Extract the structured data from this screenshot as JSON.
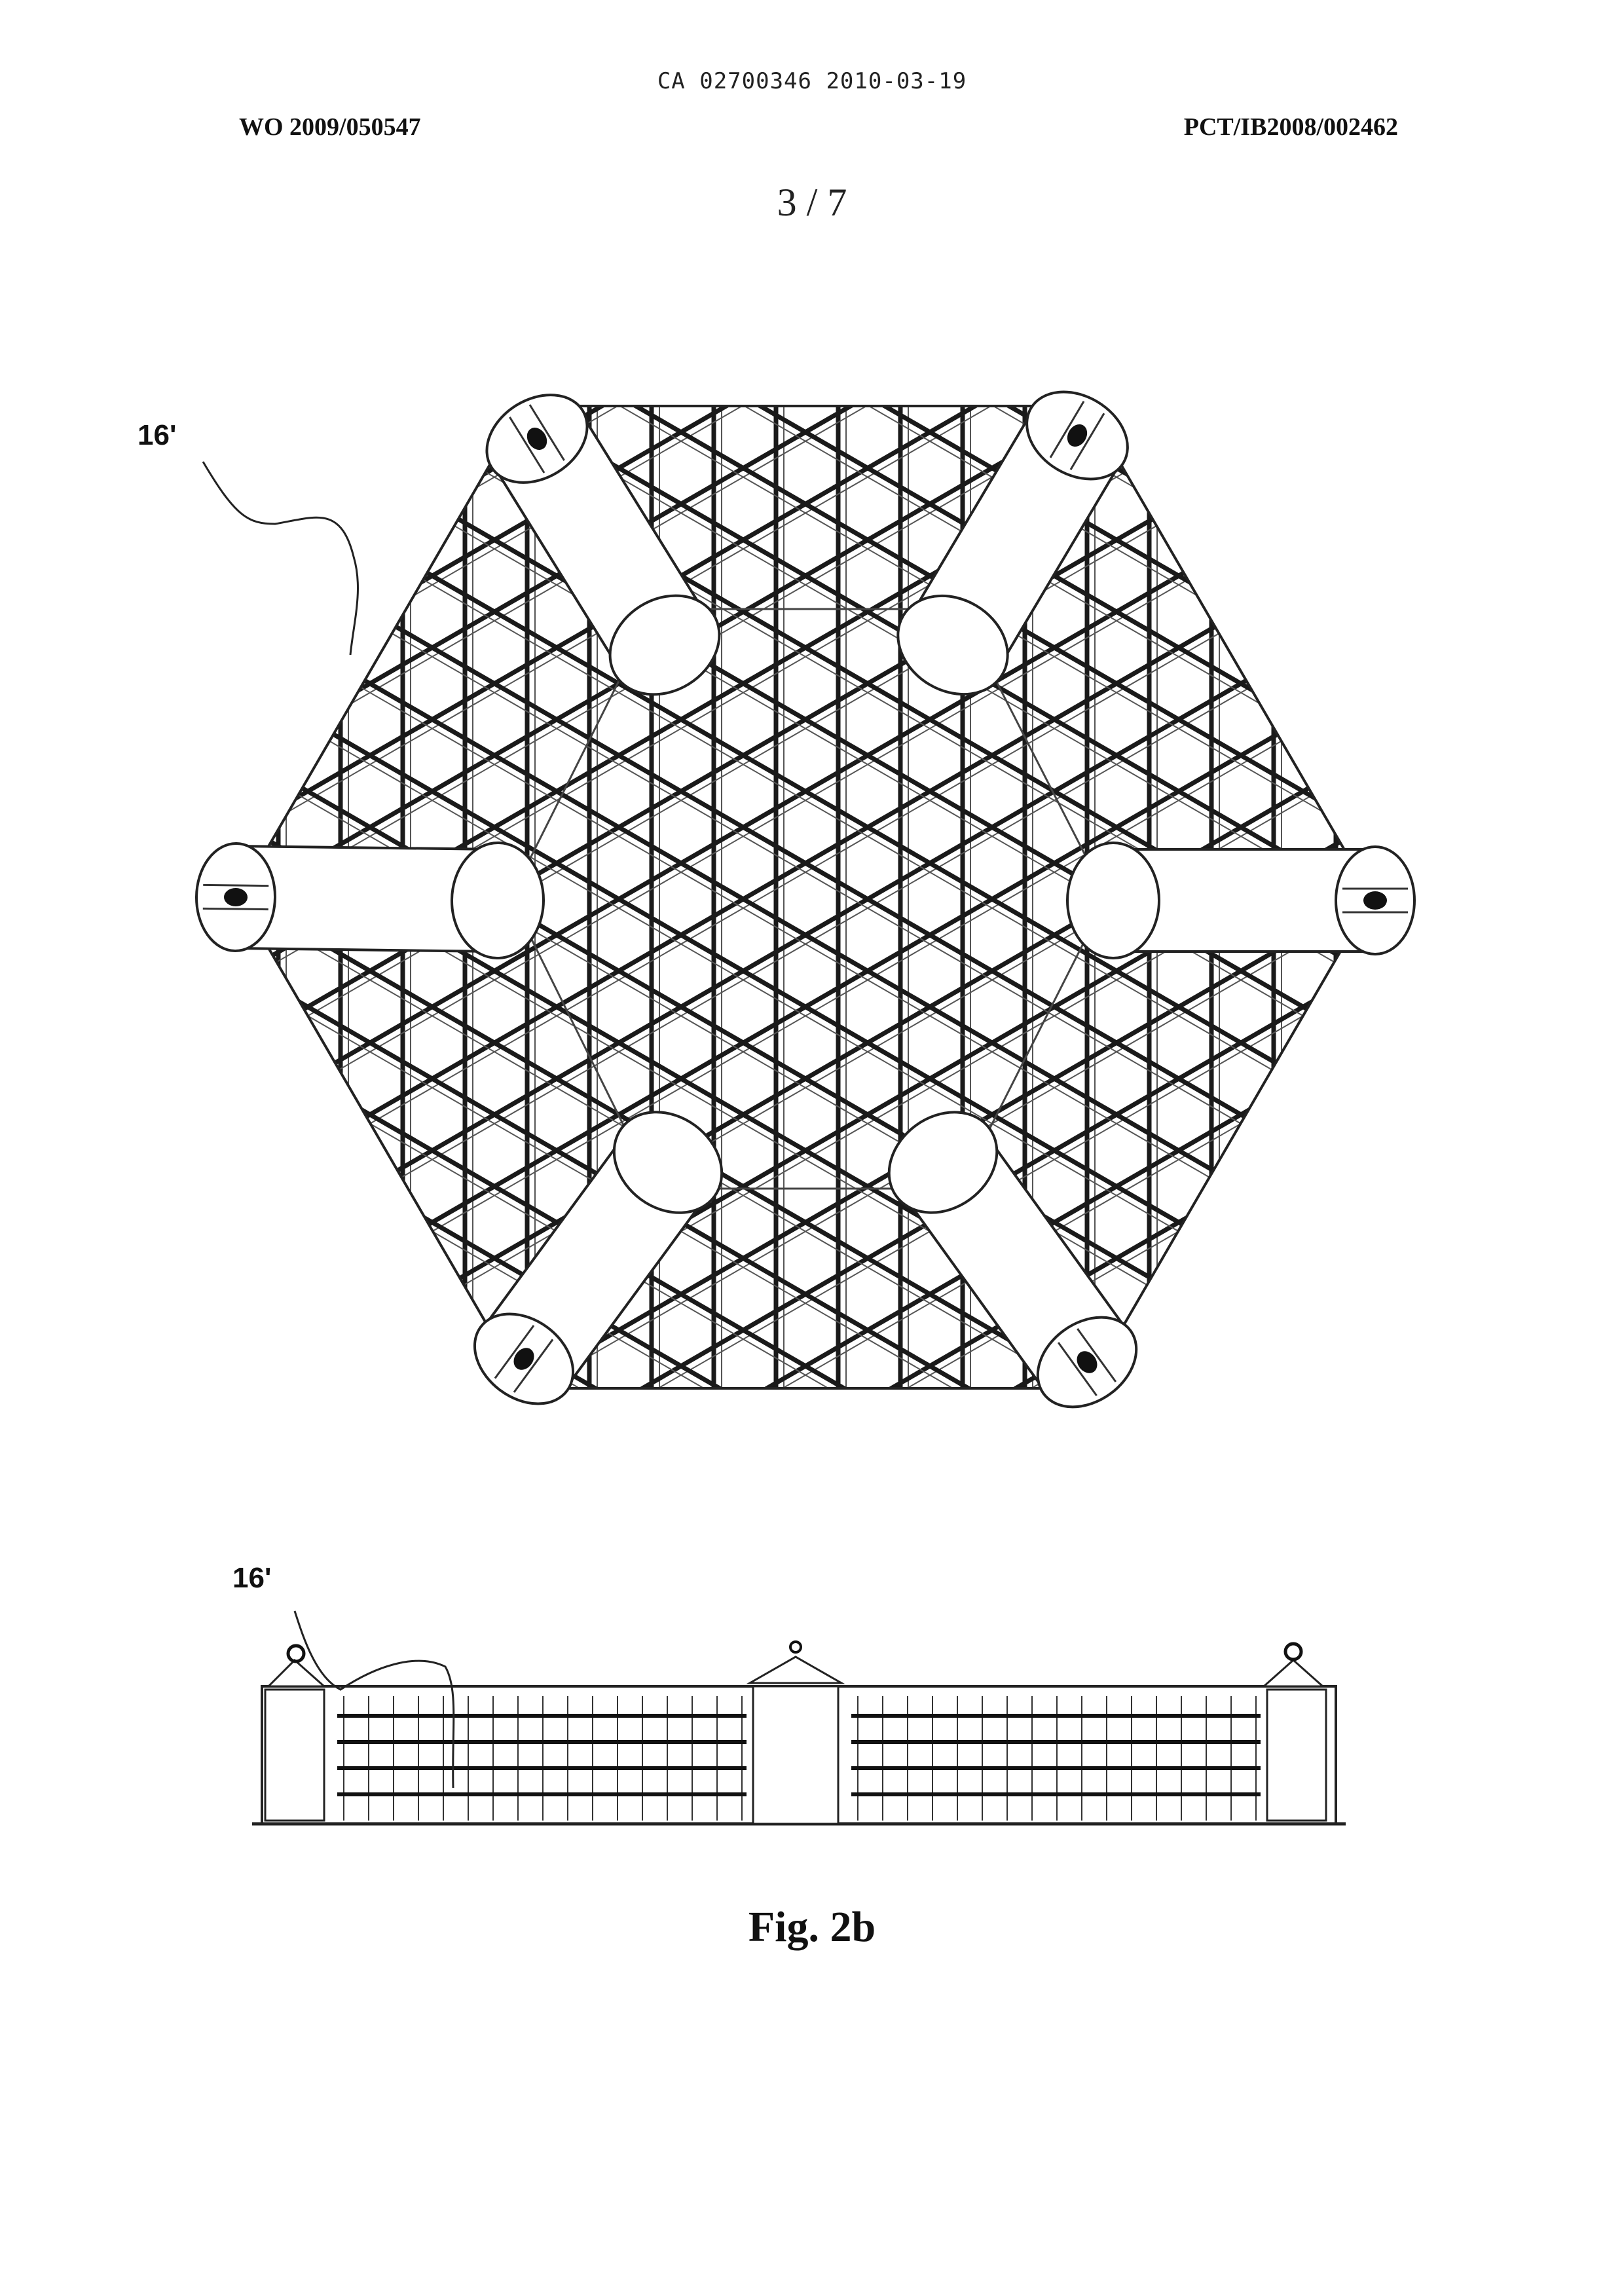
{
  "header": {
    "ca_number": "CA 02700346 2010-03-19",
    "wo_number": "WO 2009/050547",
    "pct_number": "PCT/IB2008/002462",
    "sheet": "3 / 7"
  },
  "figure": {
    "top_view_ref": "16'",
    "side_view_ref": "16'",
    "caption": "Fig. 2b"
  }
}
